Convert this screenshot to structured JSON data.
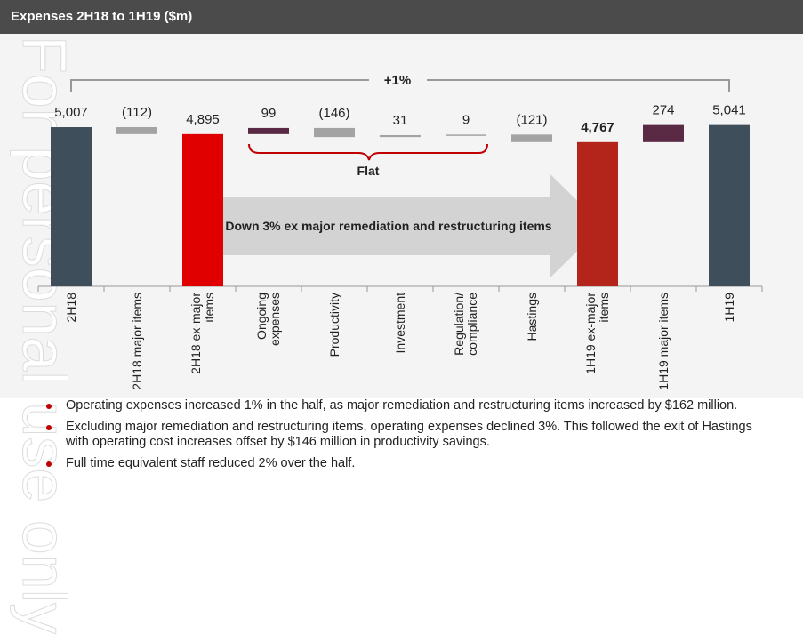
{
  "header": {
    "title": "Expenses 2H18 to 1H19 ($m)"
  },
  "watermark": "For personal use only",
  "chart_data": {
    "type": "waterfall",
    "categories": [
      "2H18",
      "2H18 major items",
      "2H18 ex-major items",
      "Ongoing expenses",
      "Productivity",
      "Investment",
      "Regulation/ compliance",
      "Hastings",
      "1H19 ex-major items",
      "1H19 major items",
      "1H19"
    ],
    "kinds": [
      "total",
      "delta",
      "total",
      "delta",
      "delta",
      "delta",
      "delta",
      "delta",
      "total",
      "delta",
      "total"
    ],
    "values": [
      5007,
      -112,
      4895,
      99,
      -146,
      31,
      9,
      -121,
      4767,
      274,
      5041
    ],
    "value_labels": [
      "5,007",
      "(112)",
      "4,895",
      "99",
      "(146)",
      "31",
      "9",
      "(121)",
      "4,767",
      "274",
      "5,041"
    ],
    "colors": [
      "#3e4f5b",
      "#a3a3a3",
      "#e00000",
      "#5a2944",
      "#a3a3a3",
      "#a3a3a3",
      "#a3a3a3",
      "#a3a3a3",
      "#b3241b",
      "#5a2944",
      "#3e4f5b"
    ],
    "ylim": [
      2450,
      5300
    ],
    "annotations": {
      "overall": "+1%",
      "flat": "Flat",
      "arrow": "Down 3% ex major remediation and restructuring items"
    }
  },
  "bullets": [
    "Operating expenses increased 1% in the half, as major remediation and restructuring items increased by $162 million.",
    "Excluding major remediation and restructuring items, operating expenses declined 3%. This followed the exit of Hastings with operating cost increases offset by $146 million in productivity savings.",
    "Full time equivalent staff reduced 2% over the half."
  ]
}
